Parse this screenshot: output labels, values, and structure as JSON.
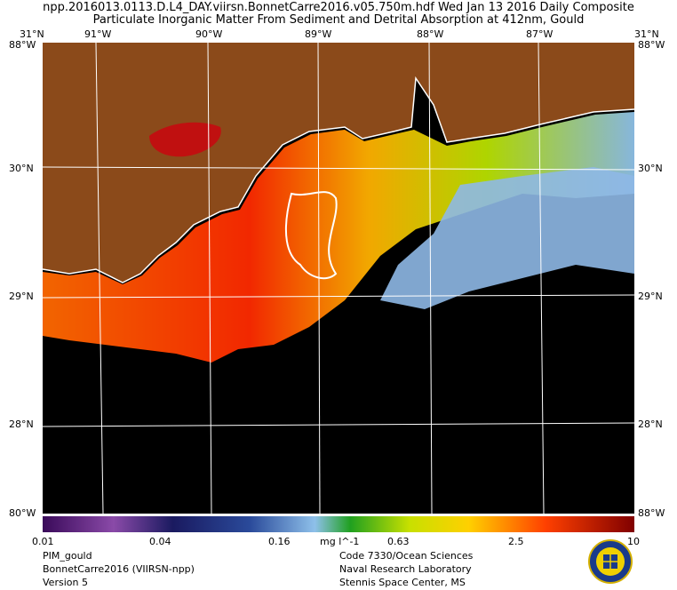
{
  "header": {
    "line1": "npp.2016013.0113.D.L4_DAY.viirsn.BonnetCarre2016.v05.750m.hdf    Wed Jan 13 2016 Daily Composite",
    "line2": "Particulate Inorganic Matter From Sediment and Detrital Absorption at 412nm, Gould"
  },
  "axes": {
    "lon_labels": [
      "91°W",
      "90°W",
      "89°W",
      "88°W",
      "87°W"
    ],
    "lat_labels": [
      "30°N",
      "29°N",
      "28°N"
    ],
    "corner_top_left": "31°N",
    "corner_top_left_over": "88°W",
    "corner_top_right": "31°N",
    "corner_top_right_over": "88°W",
    "corner_bottom_left": "80°W",
    "corner_bottom_right": "88°W"
  },
  "colorbar": {
    "ticks": [
      "0.01",
      "0.04",
      "0.16",
      "0.63",
      "2.5",
      "10"
    ],
    "unit": "mg l^-1"
  },
  "footer": {
    "left": [
      "PIM_gould",
      "BonnetCarre2016 (VIIRSN-npp)",
      "Version 5"
    ],
    "right": [
      "Code 7330/Ocean Sciences",
      "Naval Research Laboratory",
      "Stennis Space Center, MS"
    ]
  },
  "colors": {
    "land": "#8b4a1a",
    "water_nodata": "#000000",
    "grid": "#ffffff"
  }
}
